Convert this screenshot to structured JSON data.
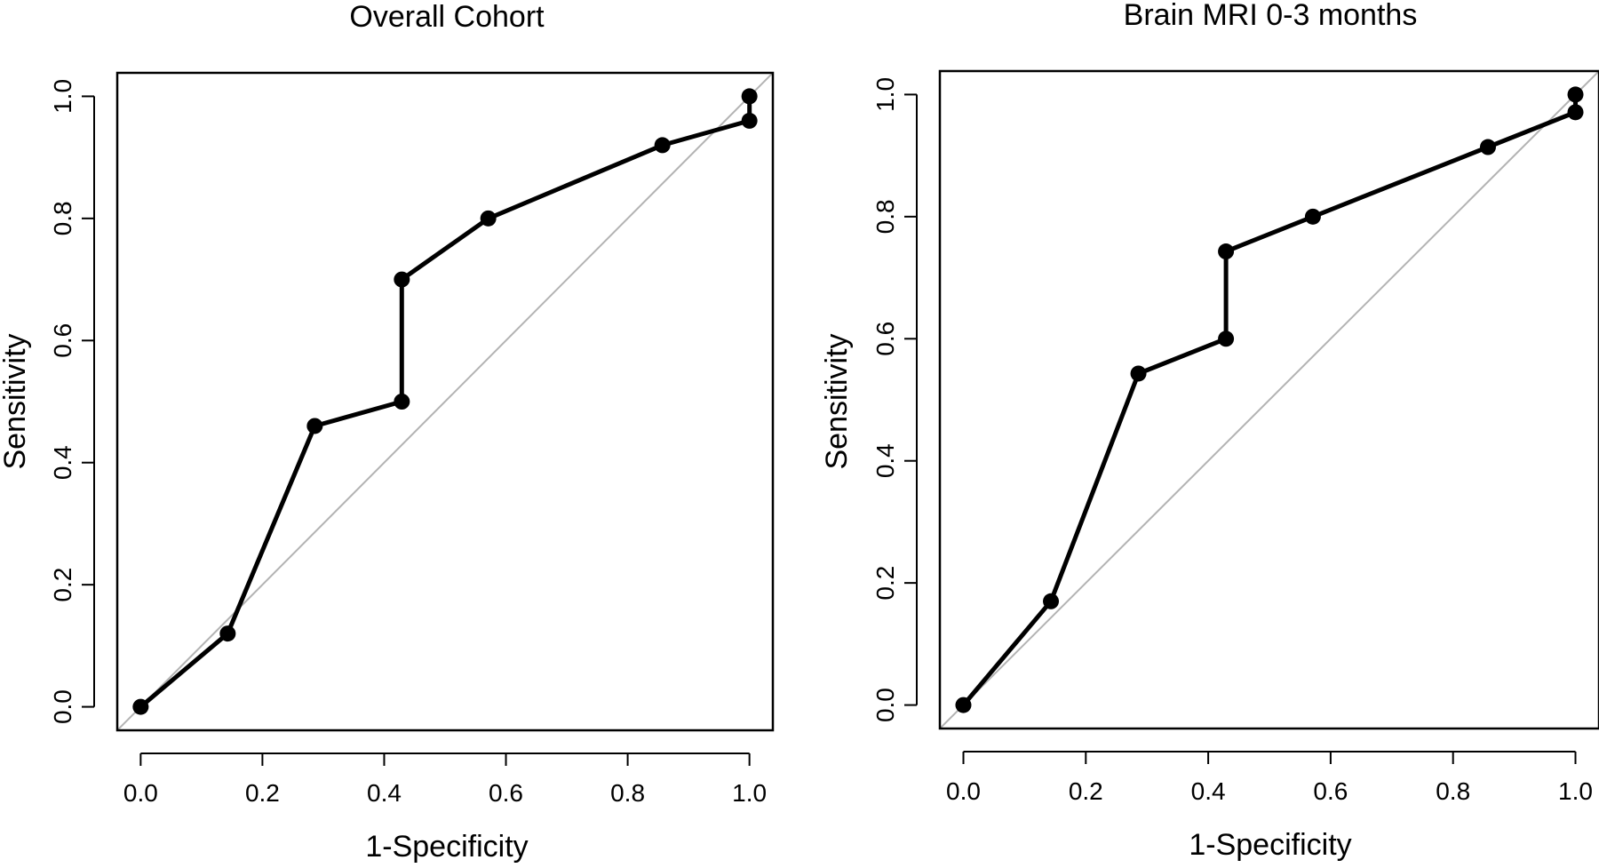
{
  "chart_data": [
    {
      "type": "line",
      "title": "Overall Cohort",
      "xlabel": "1-Specificity",
      "ylabel": "Sensitivity",
      "xlim": [
        0.0,
        1.0
      ],
      "ylim": [
        0.0,
        1.0
      ],
      "xticks": [
        "0.0",
        "0.2",
        "0.4",
        "0.6",
        "0.8",
        "1.0"
      ],
      "yticks": [
        "0.0",
        "0.2",
        "0.4",
        "0.6",
        "0.8",
        "1.0"
      ],
      "reference_line": "diagonal",
      "grid": false,
      "series": [
        {
          "x": [
            0.0,
            0.143,
            0.286,
            0.429,
            0.429,
            0.571,
            0.857,
            1.0,
            1.0
          ],
          "y": [
            0.0,
            0.12,
            0.46,
            0.5,
            0.7,
            0.8,
            0.92,
            0.96,
            1.0
          ]
        }
      ]
    },
    {
      "type": "line",
      "title": "Brain MRI 0-3 months",
      "xlabel": "1-Specificity",
      "ylabel": "Sensitivity",
      "xlim": [
        0.0,
        1.0
      ],
      "ylim": [
        0.0,
        1.0
      ],
      "xticks": [
        "0.0",
        "0.2",
        "0.4",
        "0.6",
        "0.8",
        "1.0"
      ],
      "yticks": [
        "0.0",
        "0.2",
        "0.4",
        "0.6",
        "0.8",
        "1.0"
      ],
      "reference_line": "diagonal",
      "grid": false,
      "series": [
        {
          "x": [
            0.0,
            0.143,
            0.286,
            0.429,
            0.429,
            0.571,
            0.857,
            1.0,
            1.0
          ],
          "y": [
            0.0,
            0.17,
            0.543,
            0.6,
            0.743,
            0.8,
            0.914,
            0.971,
            1.0
          ]
        }
      ]
    }
  ],
  "colors": {
    "curve": "#000000",
    "reference_line": "#b3b3b3",
    "frame": "#000000"
  }
}
